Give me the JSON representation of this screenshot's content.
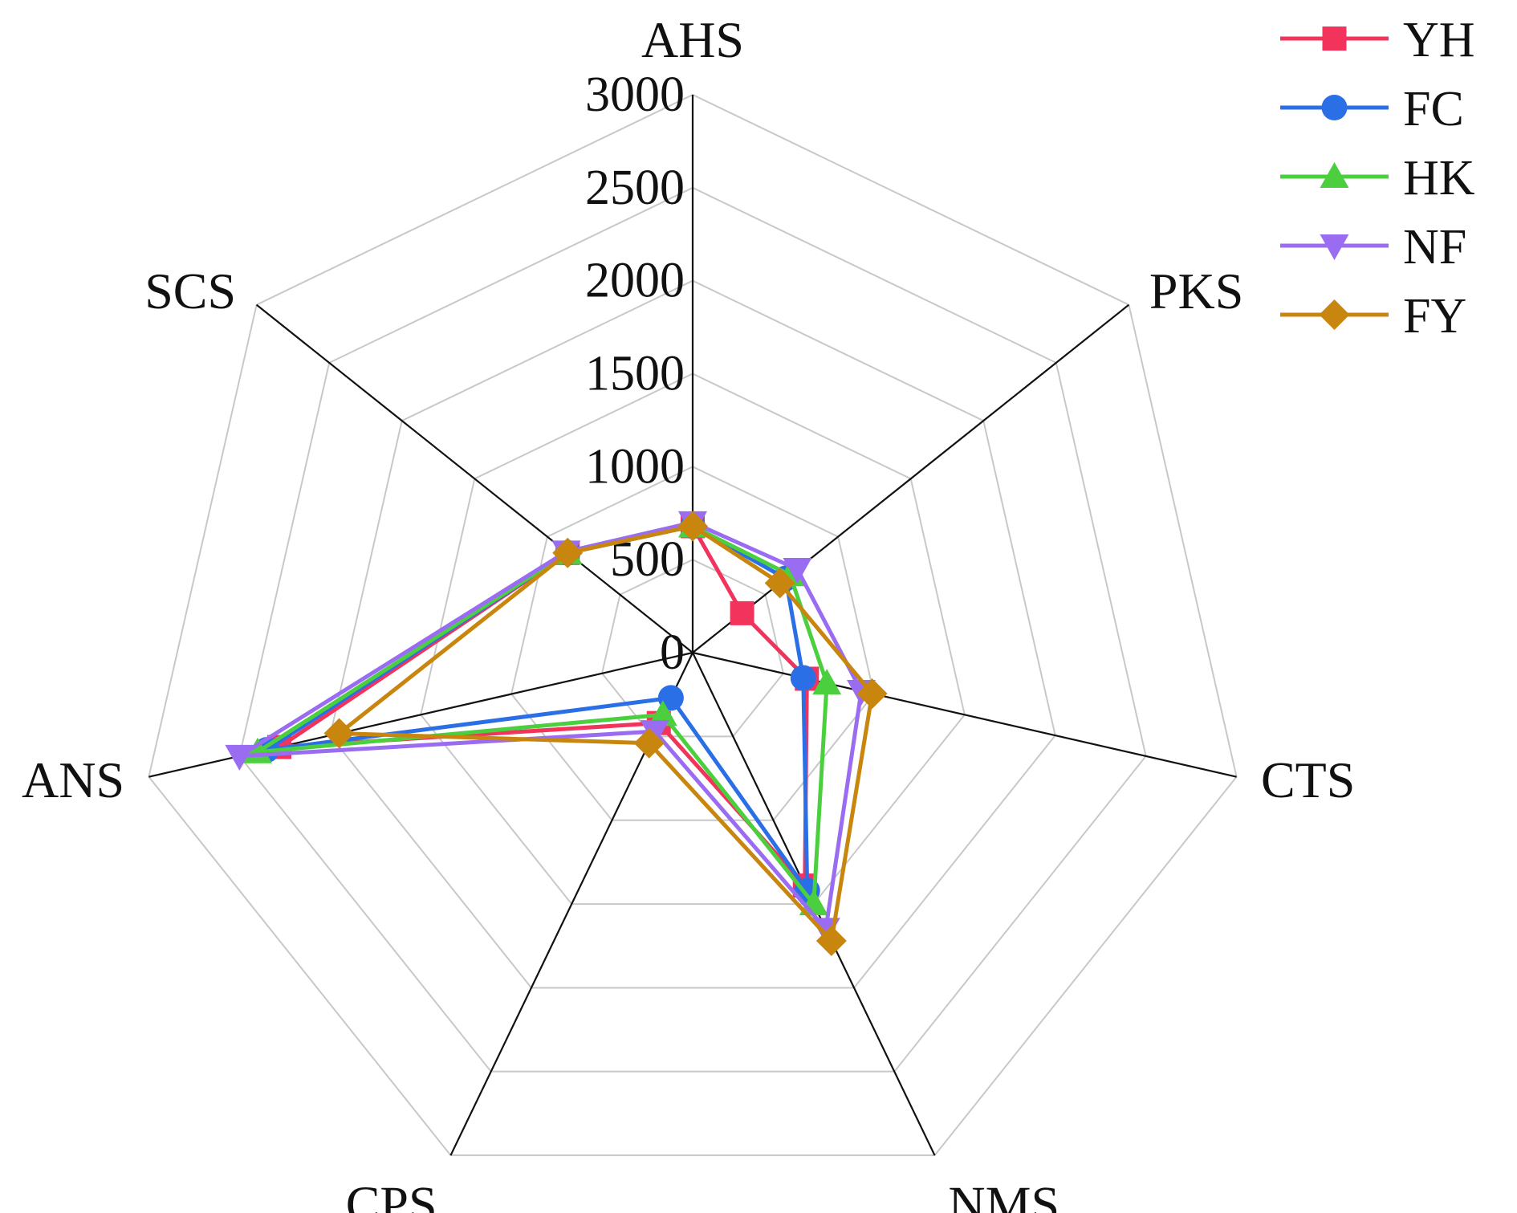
{
  "chart_data": {
    "type": "radar",
    "title": "",
    "axes": [
      "AHS",
      "PKS",
      "CTS",
      "NMS",
      "CPS",
      "ANS",
      "SCS"
    ],
    "rticks": [
      0,
      500,
      1000,
      1500,
      2000,
      2500,
      3000
    ],
    "rtick_labels": [
      "0",
      "500",
      "1000",
      "1500",
      "2000",
      "2500",
      "3000"
    ],
    "rlim": [
      0,
      3000
    ],
    "grid": true,
    "legend_position": "top-right",
    "series": [
      {
        "name": "YH",
        "color": "#f2335b",
        "marker": "square",
        "values": [
          680,
          340,
          630,
          1390,
          420,
          2280,
          860
        ]
      },
      {
        "name": "FC",
        "color": "#2a6fe6",
        "marker": "circle",
        "values": [
          680,
          640,
          610,
          1420,
          270,
          2350,
          860
        ]
      },
      {
        "name": "HK",
        "color": "#4ccf3e",
        "marker": "triangle-up",
        "values": [
          680,
          670,
          740,
          1500,
          370,
          2400,
          860
        ]
      },
      {
        "name": "NF",
        "color": "#9a6cf2",
        "marker": "triangle-down",
        "values": [
          700,
          720,
          930,
          1650,
          470,
          2500,
          870
        ]
      },
      {
        "name": "FY",
        "color": "#c8860e",
        "marker": "diamond",
        "values": [
          680,
          600,
          990,
          1720,
          540,
          1950,
          860
        ]
      }
    ]
  }
}
